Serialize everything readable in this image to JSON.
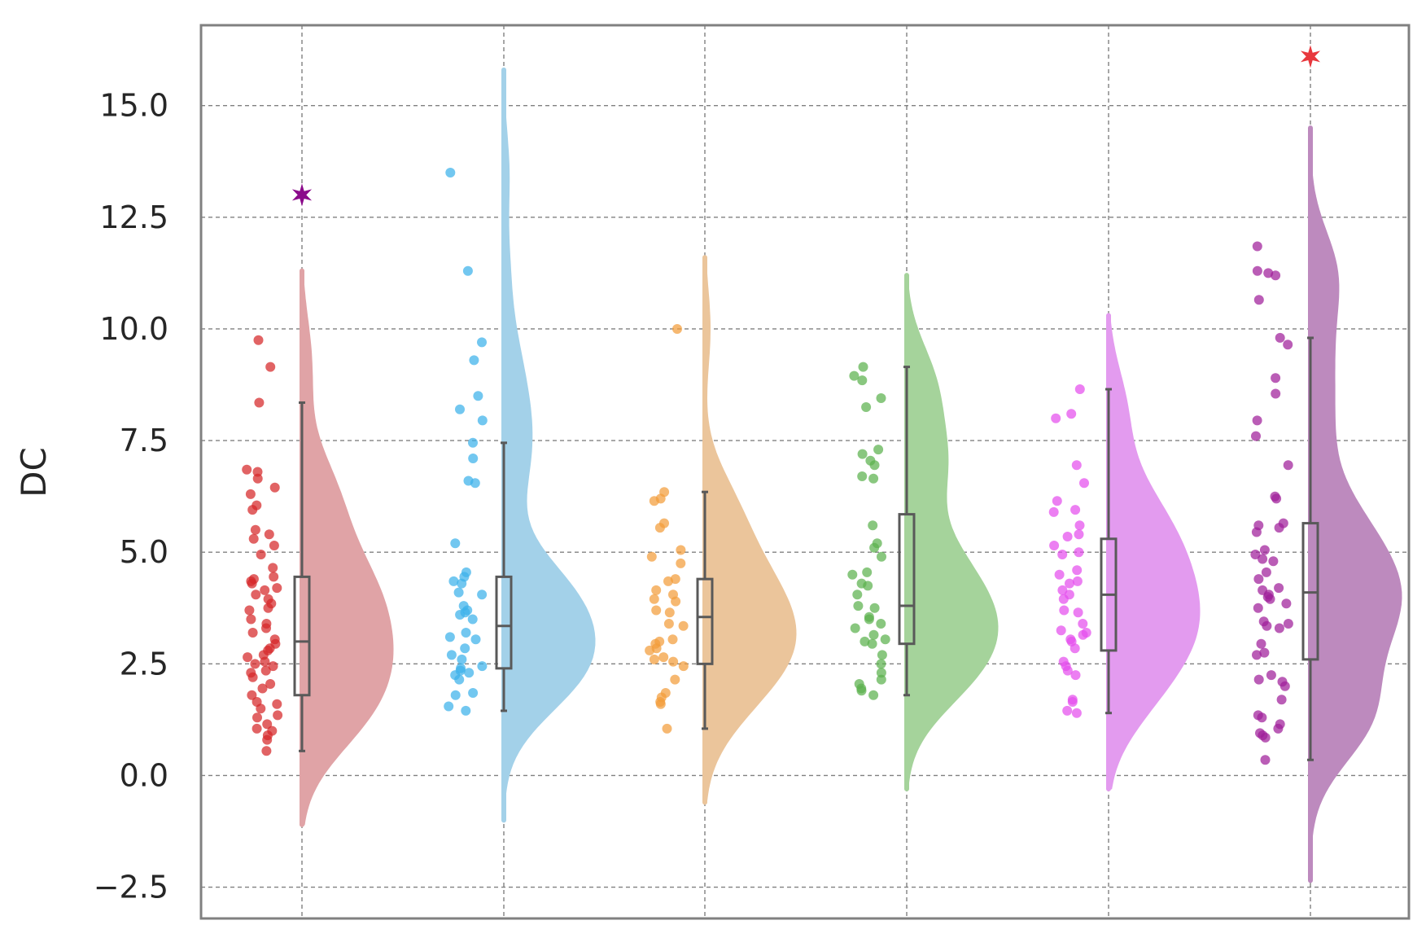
{
  "chart_data": {
    "type": "raincloud",
    "title": "",
    "xlabel": "",
    "ylabel": "DC",
    "ylim": [
      -3.2,
      16.8
    ],
    "yticks": [
      -2.5,
      0.0,
      2.5,
      5.0,
      7.5,
      10.0,
      12.5,
      15.0
    ],
    "ytick_labels": [
      "−2.5",
      "0.0",
      "2.5",
      "5.0",
      "7.5",
      "10.0",
      "12.5",
      "15.0"
    ],
    "grid": true,
    "legend": "none",
    "x_tick_labels_shown": false,
    "series": [
      {
        "color": "#d62728",
        "violin_color": "#e0a3a6",
        "violin_range": [
          -1.1,
          11.3
        ],
        "density_mode": 2.4,
        "box": {
          "min": 0.55,
          "q1": 1.8,
          "median": 3.0,
          "q3": 4.45,
          "max": 8.35
        },
        "points": [
          9.75,
          9.15,
          8.35,
          6.85,
          6.8,
          6.65,
          6.45,
          6.3,
          6.05,
          5.95,
          5.5,
          5.4,
          5.3,
          5.15,
          4.95,
          4.65,
          4.45,
          4.4,
          4.35,
          4.3,
          4.2,
          4.15,
          4.05,
          3.95,
          3.85,
          3.75,
          3.7,
          3.5,
          3.4,
          3.3,
          3.2,
          3.05,
          2.95,
          2.85,
          2.8,
          2.7,
          2.65,
          2.55,
          2.5,
          2.45,
          2.35,
          2.3,
          2.2,
          2.05,
          1.95,
          1.8,
          1.65,
          1.6,
          1.5,
          1.35,
          1.3,
          1.15,
          1.05,
          1.0,
          0.9,
          0.8,
          0.55
        ],
        "outlier": {
          "value": 13.0,
          "color": "#8b0a8b"
        }
      },
      {
        "color": "#3cb1ea",
        "violin_color": "#a3d1e9",
        "violin_range": [
          -1.0,
          15.8
        ],
        "density_mode": 3.0,
        "box": {
          "min": 1.45,
          "q1": 2.4,
          "median": 3.35,
          "q3": 4.45,
          "max": 7.45
        },
        "points": [
          13.5,
          11.3,
          9.7,
          9.3,
          8.5,
          8.2,
          7.95,
          7.45,
          7.1,
          6.6,
          6.55,
          5.2,
          4.55,
          4.45,
          4.35,
          4.3,
          4.1,
          4.05,
          3.8,
          3.7,
          3.65,
          3.6,
          3.5,
          3.2,
          3.1,
          3.05,
          2.85,
          2.7,
          2.6,
          2.45,
          2.4,
          2.35,
          2.3,
          2.25,
          2.15,
          1.85,
          1.8,
          1.55,
          1.45
        ],
        "outlier": null
      },
      {
        "color": "#f39c3a",
        "violin_color": "#ebc59b",
        "violin_range": [
          -0.6,
          11.6
        ],
        "density_mode": 3.2,
        "box": {
          "min": 1.05,
          "q1": 2.5,
          "median": 3.55,
          "q3": 4.4,
          "max": 6.35
        },
        "points": [
          10.0,
          6.35,
          6.2,
          6.15,
          5.65,
          5.55,
          5.05,
          4.9,
          4.75,
          4.4,
          4.35,
          4.15,
          4.05,
          3.95,
          3.9,
          3.7,
          3.65,
          3.4,
          3.35,
          3.05,
          3.0,
          2.95,
          2.85,
          2.8,
          2.65,
          2.6,
          2.55,
          2.45,
          2.15,
          1.85,
          1.75,
          1.65,
          1.6,
          1.05
        ],
        "outlier": null
      },
      {
        "color": "#5cb24d",
        "violin_color": "#a5d39b",
        "violin_range": [
          -0.3,
          11.2
        ],
        "density_mode": 3.3,
        "box": {
          "min": 1.8,
          "q1": 2.95,
          "median": 3.8,
          "q3": 5.85,
          "max": 9.15
        },
        "points": [
          9.15,
          8.95,
          8.85,
          8.45,
          8.25,
          7.3,
          7.2,
          7.05,
          6.95,
          6.7,
          6.65,
          5.6,
          5.2,
          5.1,
          4.9,
          4.55,
          4.5,
          4.3,
          4.25,
          4.05,
          3.8,
          3.75,
          3.55,
          3.5,
          3.4,
          3.3,
          3.15,
          3.05,
          3.0,
          2.95,
          2.7,
          2.5,
          2.3,
          2.15,
          2.05,
          1.95,
          1.9,
          1.8
        ],
        "outlier": null
      },
      {
        "color": "#e44ded",
        "violin_color": "#e39bef",
        "violin_range": [
          -0.3,
          10.3
        ],
        "density_mode": 3.5,
        "box": {
          "min": 1.4,
          "q1": 2.8,
          "median": 4.05,
          "q3": 5.3,
          "max": 8.65
        },
        "points": [
          8.65,
          8.1,
          8.0,
          6.95,
          6.55,
          6.15,
          5.95,
          5.9,
          5.6,
          5.4,
          5.35,
          5.15,
          5.0,
          4.95,
          4.6,
          4.5,
          4.35,
          4.3,
          4.15,
          4.05,
          3.95,
          3.7,
          3.65,
          3.4,
          3.25,
          3.2,
          3.15,
          3.05,
          3.0,
          2.85,
          2.55,
          2.45,
          2.35,
          2.25,
          1.7,
          1.65,
          1.45,
          1.4
        ],
        "outlier": null
      },
      {
        "color": "#a01f9a",
        "violin_color": "#bd8abe",
        "violin_range": [
          -2.35,
          14.5
        ],
        "density_mode": 3.6,
        "box": {
          "min": 0.35,
          "q1": 2.6,
          "median": 4.1,
          "q3": 5.65,
          "max": 9.8
        },
        "points": [
          11.85,
          11.3,
          11.25,
          11.2,
          10.65,
          9.8,
          9.65,
          8.9,
          8.55,
          7.95,
          7.6,
          6.95,
          6.25,
          6.2,
          5.65,
          5.6,
          5.55,
          5.45,
          5.05,
          4.95,
          4.85,
          4.8,
          4.55,
          4.4,
          4.2,
          4.15,
          4.05,
          4.0,
          3.95,
          3.85,
          3.75,
          3.45,
          3.4,
          3.35,
          3.3,
          2.95,
          2.75,
          2.7,
          2.25,
          2.15,
          2.1,
          2.0,
          1.7,
          1.35,
          1.3,
          1.15,
          1.05,
          0.95,
          0.9,
          0.85,
          0.35
        ],
        "outlier": {
          "value": 16.1,
          "color": "#e8383d"
        }
      }
    ]
  },
  "colors": {
    "grid": "#808080",
    "frame": "#808080",
    "box_line": "#595959",
    "text": "#262626"
  }
}
